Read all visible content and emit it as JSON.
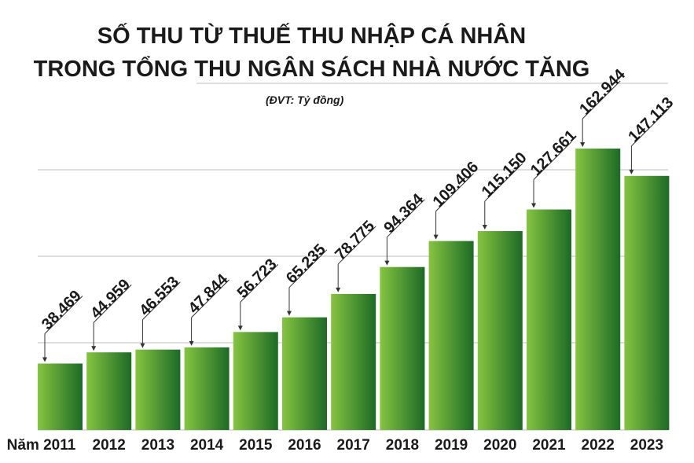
{
  "chart_data": {
    "type": "bar",
    "title_line1": "SỐ THU TỪ THUẾ THU NHẬP CÁ NHÂN",
    "title_line2": "TRONG TỔNG THU NGÂN SÁCH NHÀ NƯỚC TĂNG",
    "unit": "(ĐVT: Tỷ đồng)",
    "categories": [
      "Năm 2011",
      "2012",
      "2013",
      "2014",
      "2015",
      "2016",
      "2017",
      "2018",
      "2019",
      "2020",
      "2021",
      "2022",
      "2023"
    ],
    "values": [
      38469,
      44959,
      46553,
      47844,
      56723,
      65235,
      78775,
      94364,
      109406,
      115150,
      127661,
      162944,
      147113
    ],
    "value_labels": [
      "38.469",
      "44.959",
      "46.553",
      "47.844",
      "56.723",
      "65.235",
      "78.775",
      "94.364",
      "109.406",
      "115.150",
      "127.661",
      "162.944",
      "147.113"
    ],
    "ylim": [
      0,
      200000
    ],
    "grid": true,
    "colors": {
      "bar_light": "#86c440",
      "bar_dark": "#1c6a26",
      "grid": "#bdbdbd",
      "text": "#1a1a1a"
    }
  }
}
